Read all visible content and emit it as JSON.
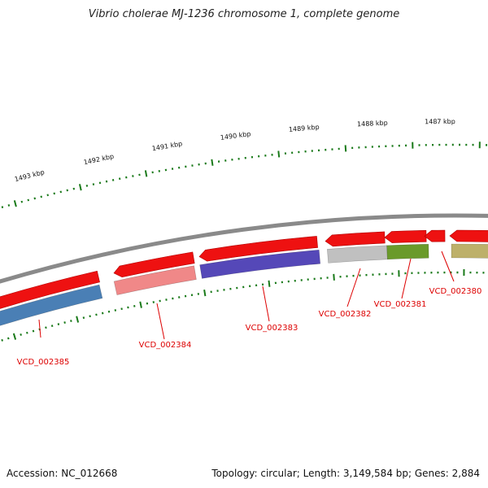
{
  "title": "Vibrio cholerae MJ-1236 chromosome 1, complete genome",
  "footer": {
    "accession": "Accession: NC_012668",
    "summary": "Topology: circular; Length: 3,149,584 bp; Genes: 2,884"
  },
  "colors": {
    "backbone": "#8a8a8a",
    "cds": "#ee1111",
    "tick": "#1a7a1a",
    "label": "#dd0000"
  },
  "kbp_ticks": [
    "1493 kbp",
    "1492 kbp",
    "1491 kbp",
    "1490 kbp",
    "1489 kbp",
    "1488 kbp",
    "1487 kbp"
  ],
  "genes": [
    {
      "id": "VCD_002385",
      "color": "#4a7fb5"
    },
    {
      "id": "VCD_002384",
      "color": "#f08888"
    },
    {
      "id": "VCD_002383",
      "color": "#5548b8"
    },
    {
      "id": "VCD_002382",
      "color": "#c0c0c0"
    },
    {
      "id": "VCD_002381",
      "color": "#6a9a2a"
    },
    {
      "id": "VCD_002380",
      "color": "#bdb06a"
    }
  ]
}
